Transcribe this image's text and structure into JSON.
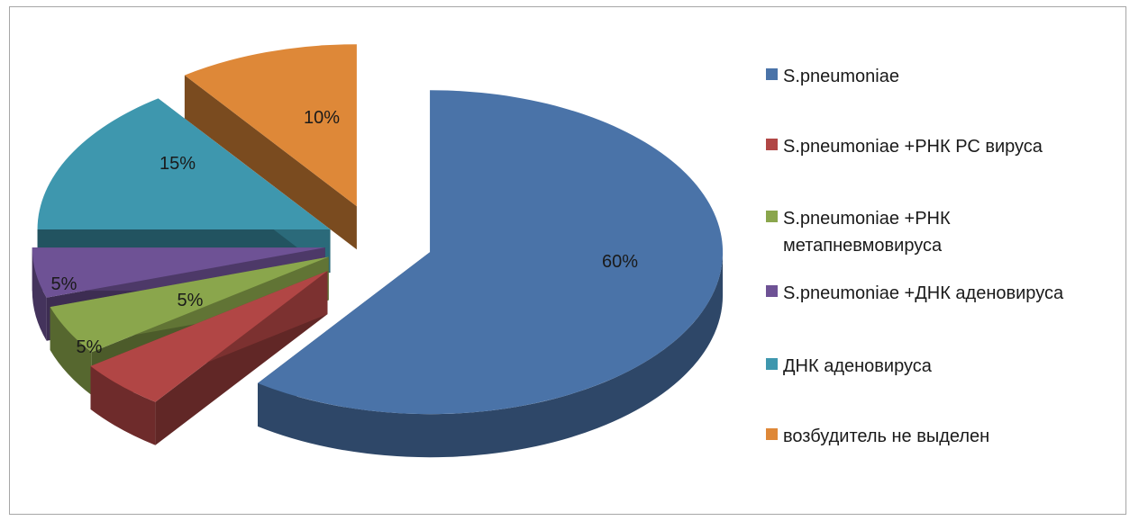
{
  "chart_data": {
    "type": "pie",
    "style": "3d-exploded",
    "title": "",
    "legend_position": "right",
    "categories": [
      "S.pneumoniae",
      "S.pneumoniae +РНК РС вируса",
      "S.pneumoniae +РНК метапневмовируса",
      "S.pneumoniae +ДНК аденовируса",
      " ДНК аденовируса",
      "возбудитель не выделен"
    ],
    "values": [
      60,
      5,
      5,
      5,
      15,
      10
    ],
    "data_labels": [
      "60%",
      "5%",
      "5%",
      "5%",
      "15%",
      "10%"
    ],
    "colors": [
      "#4a73a8",
      "#b14645",
      "#8aa64c",
      "#6e5295",
      "#3e97ae",
      "#de8838"
    ]
  },
  "legend": {
    "items": [
      {
        "label": "S.pneumoniae",
        "color": "#4a73a8"
      },
      {
        "label": "S.pneumoniae +РНК РС вируса",
        "color": "#b14645"
      },
      {
        "label": "S.pneumoniae +РНК\nметапневмовируса",
        "color": "#8aa64c"
      },
      {
        "label": "S.pneumoniae +ДНК аденовируса",
        "color": "#6e5295"
      },
      {
        "label": " ДНК аденовируса",
        "color": "#3e97ae"
      },
      {
        "label": "возбудитель не выделен",
        "color": "#de8838"
      }
    ]
  }
}
